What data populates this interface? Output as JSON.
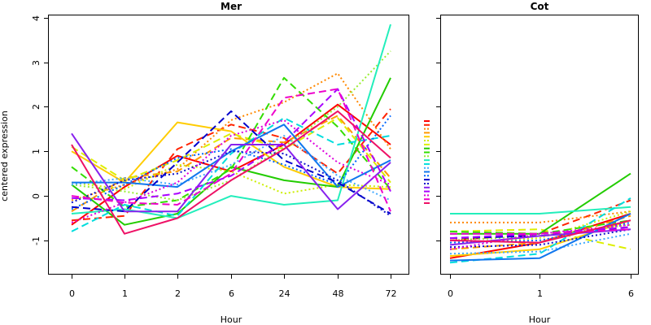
{
  "chart_data": [
    {
      "type": "line",
      "title": "Mer",
      "xlabel": "Hour",
      "ylabel": "centered expression",
      "categories": [
        "0",
        "1",
        "2",
        "6",
        "24",
        "48",
        "72"
      ],
      "ylim": [
        -1.75,
        4.05
      ],
      "yticks": [
        -1,
        0,
        1,
        2,
        3,
        4
      ],
      "series": [
        {
          "color": "#ff0000",
          "dash": "solid",
          "values": [
            -0.65,
            0.2,
            0.9,
            0.55,
            1.15,
            2.05,
            1.15
          ]
        },
        {
          "color": "#ff2200",
          "dash": "dashed",
          "values": [
            -0.55,
            -0.45,
            1.05,
            1.6,
            1.3,
            0.5,
            1.95
          ]
        },
        {
          "color": "#ff8800",
          "dash": "dotted",
          "values": [
            -0.1,
            0.25,
            0.6,
            1.7,
            2.1,
            2.75,
            1.05
          ]
        },
        {
          "color": "#ff9900",
          "dash": "dashed",
          "values": [
            -0.35,
            0.4,
            0.55,
            1.3,
            1.2,
            1.8,
            0.4
          ]
        },
        {
          "color": "#ffcc00",
          "dash": "solid",
          "values": [
            1.0,
            0.3,
            1.65,
            1.45,
            0.65,
            0.2,
            0.15
          ]
        },
        {
          "color": "#ccee00",
          "dash": "dotted",
          "values": [
            0.3,
            0.15,
            0.7,
            0.55,
            0.05,
            0.25,
            0.2
          ]
        },
        {
          "color": "#ddee00",
          "dash": "dashed",
          "values": [
            1.1,
            0.35,
            0.8,
            1.4,
            1.05,
            1.75,
            0.3
          ]
        },
        {
          "color": "#22cc00",
          "dash": "solid",
          "values": [
            0.25,
            -0.65,
            -0.4,
            0.65,
            0.35,
            0.2,
            2.65
          ]
        },
        {
          "color": "#33dd00",
          "dash": "dashed",
          "values": [
            0.65,
            -0.25,
            -0.1,
            0.6,
            2.65,
            1.55,
            0.15
          ]
        },
        {
          "color": "#99ee33",
          "dash": "dotted",
          "values": [
            0.25,
            0.1,
            -0.1,
            0.35,
            1.1,
            2.0,
            3.25
          ]
        },
        {
          "color": "#22eebb",
          "dash": "solid",
          "values": [
            -0.4,
            -0.3,
            -0.5,
            0.0,
            -0.2,
            -0.1,
            3.85
          ]
        },
        {
          "color": "#00dddd",
          "dash": "dashed",
          "values": [
            -0.8,
            -0.2,
            -0.45,
            0.95,
            1.75,
            1.15,
            1.35
          ]
        },
        {
          "color": "#44aaff",
          "dash": "dotted",
          "values": [
            0.25,
            0.4,
            0.25,
            0.7,
            1.35,
            0.45,
            -0.1
          ]
        },
        {
          "color": "#1177ee",
          "dash": "solid",
          "values": [
            0.3,
            0.3,
            0.2,
            1.0,
            1.6,
            0.2,
            0.8
          ]
        },
        {
          "color": "#0066ff",
          "dash": "dotted",
          "values": [
            -0.3,
            0.25,
            0.85,
            1.05,
            0.7,
            0.25,
            1.8
          ]
        },
        {
          "color": "#0000cc",
          "dash": "dashed",
          "values": [
            -0.25,
            -0.35,
            0.75,
            1.9,
            0.8,
            0.3,
            -0.4
          ]
        },
        {
          "color": "#1111cc",
          "dash": "dotted",
          "values": [
            -0.15,
            0.35,
            0.5,
            1.0,
            0.95,
            0.35,
            -0.45
          ]
        },
        {
          "color": "#8822ee",
          "dash": "solid",
          "values": [
            1.4,
            -0.35,
            -0.35,
            1.15,
            1.15,
            -0.3,
            0.75
          ]
        },
        {
          "color": "#aa00ff",
          "dash": "dashed",
          "values": [
            -0.05,
            -0.1,
            0.05,
            0.45,
            1.2,
            2.4,
            0.1
          ]
        },
        {
          "color": "#dd00dd",
          "dash": "dotted",
          "values": [
            -0.6,
            -0.15,
            0.3,
            1.35,
            1.7,
            0.75,
            0.25
          ]
        },
        {
          "color": "#ee00cc",
          "dash": "dashed",
          "values": [
            0.0,
            -0.15,
            -0.2,
            0.5,
            2.2,
            2.4,
            -0.35
          ]
        },
        {
          "color": "#ee1166",
          "dash": "solid",
          "values": [
            1.15,
            -0.85,
            -0.5,
            0.35,
            1.05,
            1.9,
            0.85
          ]
        }
      ]
    },
    {
      "type": "line",
      "title": "Cot",
      "xlabel": "Hour",
      "ylabel": "",
      "categories": [
        "0",
        "1",
        "6"
      ],
      "ylim": [
        -1.75,
        4.05
      ],
      "yticks": [
        -1,
        0,
        1,
        2,
        3,
        4
      ],
      "series": [
        {
          "color": "#ff0000",
          "dash": "solid",
          "values": [
            -1.4,
            -1.05,
            -0.4
          ]
        },
        {
          "color": "#ff2200",
          "dash": "dashed",
          "values": [
            -1.0,
            -0.85,
            -0.1
          ]
        },
        {
          "color": "#ff8800",
          "dash": "dotted",
          "values": [
            -0.6,
            -0.6,
            -0.35
          ]
        },
        {
          "color": "#ff9900",
          "dash": "dashed",
          "values": [
            -1.2,
            -1.05,
            -0.45
          ]
        },
        {
          "color": "#ffcc00",
          "dash": "solid",
          "values": [
            -1.35,
            -1.2,
            -0.55
          ]
        },
        {
          "color": "#ccee00",
          "dash": "dotted",
          "values": [
            -1.05,
            -0.95,
            -0.35
          ]
        },
        {
          "color": "#ddee00",
          "dash": "dashed",
          "values": [
            -0.8,
            -0.75,
            -1.2
          ]
        },
        {
          "color": "#22cc00",
          "dash": "solid",
          "values": [
            -0.85,
            -0.85,
            0.5
          ]
        },
        {
          "color": "#33dd00",
          "dash": "dashed",
          "values": [
            -0.8,
            -0.85,
            -0.55
          ]
        },
        {
          "color": "#99ee33",
          "dash": "dotted",
          "values": [
            -1.0,
            -0.9,
            -0.65
          ]
        },
        {
          "color": "#22eebb",
          "dash": "solid",
          "values": [
            -0.4,
            -0.4,
            -0.25
          ]
        },
        {
          "color": "#00dddd",
          "dash": "dashed",
          "values": [
            -1.5,
            -1.3,
            -0.05
          ]
        },
        {
          "color": "#44aaff",
          "dash": "dotted",
          "values": [
            -1.3,
            -1.25,
            -0.85
          ]
        },
        {
          "color": "#1177ee",
          "dash": "solid",
          "values": [
            -1.45,
            -1.4,
            -0.4
          ]
        },
        {
          "color": "#0066ff",
          "dash": "dotted",
          "values": [
            -1.05,
            -1.0,
            -0.6
          ]
        },
        {
          "color": "#0000cc",
          "dash": "dashed",
          "values": [
            -0.95,
            -0.9,
            -0.7
          ]
        },
        {
          "color": "#1111cc",
          "dash": "dotted",
          "values": [
            -1.15,
            -1.1,
            -0.75
          ]
        },
        {
          "color": "#8822ee",
          "dash": "solid",
          "values": [
            -1.1,
            -0.9,
            -0.75
          ]
        },
        {
          "color": "#aa00ff",
          "dash": "dashed",
          "values": [
            -0.95,
            -0.85,
            -0.7
          ]
        },
        {
          "color": "#dd00dd",
          "dash": "dotted",
          "values": [
            -1.2,
            -0.85,
            -0.65
          ]
        },
        {
          "color": "#ee00cc",
          "dash": "dashed",
          "values": [
            -0.85,
            -0.85,
            -0.75
          ]
        },
        {
          "color": "#ee1166",
          "dash": "solid",
          "values": [
            -1.0,
            -1.05,
            -0.55
          ]
        }
      ]
    }
  ]
}
